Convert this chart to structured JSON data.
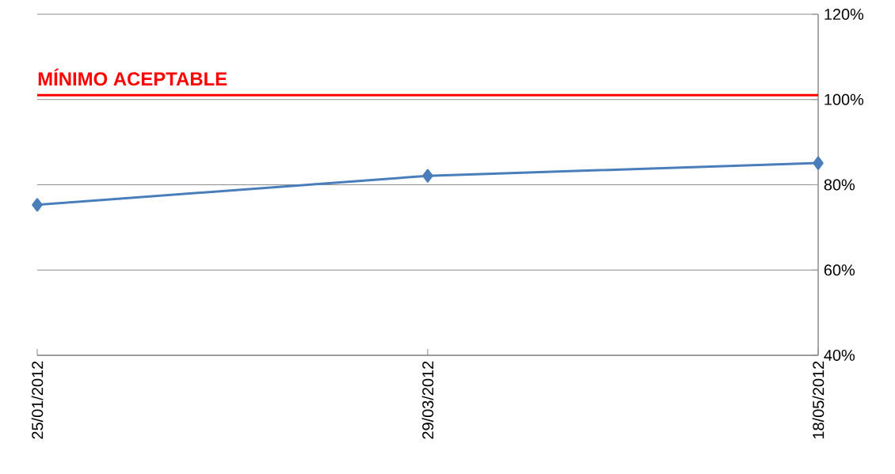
{
  "chart_data": {
    "type": "line",
    "categories": [
      "25/01/2012",
      "29/03/2012",
      "18/05/2012"
    ],
    "series": [
      {
        "color": "#4a7ebb",
        "values": [
          75.3,
          82.1,
          85.1
        ]
      }
    ],
    "ylim": [
      40,
      120
    ],
    "yticks": [
      {
        "value": 40,
        "label": "40%"
      },
      {
        "value": 60,
        "label": "60%"
      },
      {
        "value": 80,
        "label": "80%"
      },
      {
        "value": 100,
        "label": "100%"
      },
      {
        "value": 120,
        "label": "120%"
      }
    ],
    "ref_lines": [
      {
        "axis": "y",
        "value": 101,
        "label": "MÍNIMO ACEPTABLE",
        "color": "#ff0000"
      }
    ],
    "grid": "y",
    "marker": "diamond",
    "line_style": "solid"
  }
}
